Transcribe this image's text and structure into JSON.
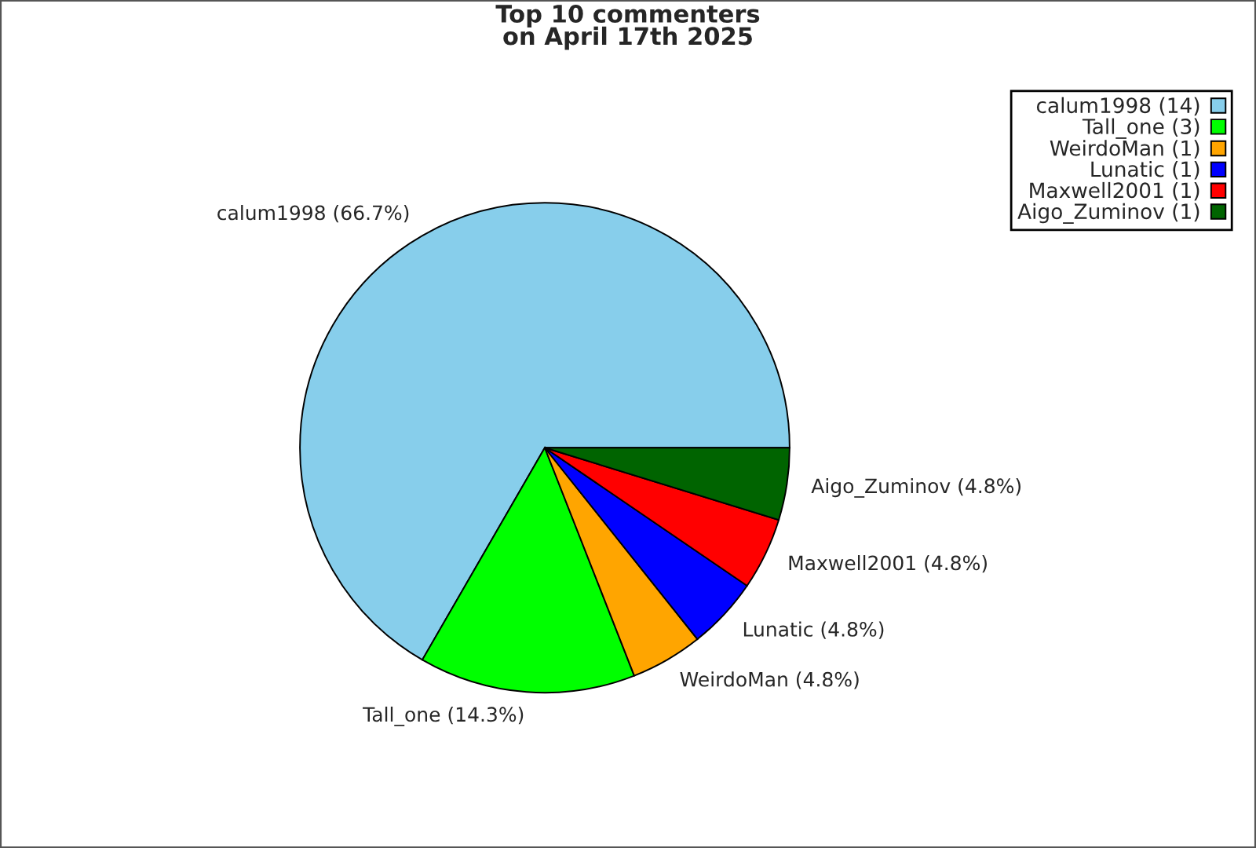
{
  "chart_data": {
    "type": "pie",
    "title": "Top 10 commenters\non April 17th 2025",
    "categories": [
      "calum1998 (14)",
      "Tall_one (3)",
      "WeirdoMan (1)",
      "Lunatic (1)",
      "Maxwell2001 (1)",
      "Aigo_Zuminov (1)"
    ],
    "values": [
      14,
      3,
      1,
      1,
      1,
      1
    ],
    "annotations": [
      "calum1998 (66.7%)",
      "Tall_one (14.3%)",
      "WeirdoMan (4.8%)",
      "Lunatic (4.8%)",
      "Maxwell2001 (4.8%)",
      "Aigo_Zuminov (4.8%)"
    ],
    "colors": [
      "#87ceeb",
      "#00ff00",
      "#ffa500",
      "#0000ff",
      "#ff0000",
      "#006400"
    ],
    "legend": "top right"
  }
}
